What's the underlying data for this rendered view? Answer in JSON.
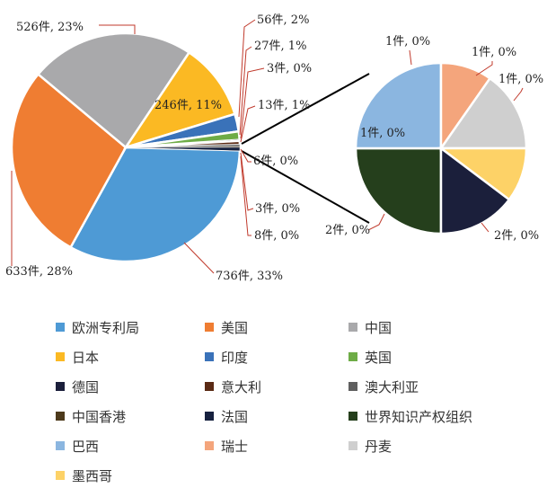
{
  "chart_data": {
    "type": "pie",
    "variant": "pie-of-pie",
    "title": "",
    "unit": "件",
    "slices": [
      {
        "name": "欧洲专利局",
        "count": 736,
        "percent": 33,
        "label": "736件, 33%",
        "color": "#4e9ad5"
      },
      {
        "name": "美国",
        "count": 633,
        "percent": 28,
        "label": "633件, 28%",
        "color": "#ef7d32"
      },
      {
        "name": "中国",
        "count": 526,
        "percent": 23,
        "label": "526件, 23%",
        "color": "#a9a9ab"
      },
      {
        "name": "日本",
        "count": 246,
        "percent": 11,
        "label": "246件, 11%",
        "color": "#fbb923"
      },
      {
        "name": "印度",
        "count": 56,
        "percent": 2,
        "label": "56件, 2%",
        "color": "#3a72b9"
      },
      {
        "name": "英国",
        "count": 27,
        "percent": 1,
        "label": "27件, 1%",
        "color": "#6eac46"
      },
      {
        "name": "德国",
        "count": 3,
        "percent": 0,
        "label": "3件, 0%",
        "color": "#1b1f3b"
      },
      {
        "name": "意大利",
        "count": 13,
        "percent": 1,
        "label": "13件, 1%",
        "color": "#5a2a14"
      },
      {
        "name": "澳大利亚",
        "count": 6,
        "percent": 0,
        "label": "6件, 0%",
        "color": "#5f5f5f"
      },
      {
        "name": "中国香港",
        "count": 3,
        "percent": 0,
        "label": "3件, 0%",
        "color": "#4d3a1b"
      },
      {
        "name": "法国",
        "count": 8,
        "percent": 0,
        "label": "8件, 0%",
        "color": "#16213f"
      }
    ],
    "secondary": [
      {
        "name": "世界知识产权组织",
        "count": 2,
        "percent": 0,
        "label": "2件, 0%",
        "color": "#253f1c"
      },
      {
        "name": "巴西",
        "count": 1,
        "percent": 0,
        "label": "1件, 0%",
        "color": "#8bb6e0"
      },
      {
        "name": "瑞士",
        "count": 1,
        "percent": 0,
        "label": "1件, 0%",
        "color": "#f4a57c"
      },
      {
        "name": "丹麦",
        "count": 1,
        "percent": 0,
        "label": "1件, 0%",
        "color": "#cfcfcf"
      },
      {
        "name": "墨西哥",
        "count": 1,
        "percent": 0,
        "label": "1件, 0%",
        "color": "#fdd267"
      },
      {
        "name": "德国",
        "count": 2,
        "percent": 0,
        "label": "2件, 0%",
        "color": "#1b1f3b"
      }
    ],
    "legend_position": "bottom",
    "legend": [
      {
        "name": "欧洲专利局",
        "color": "#4e9ad5"
      },
      {
        "name": "美国",
        "color": "#ef7d32"
      },
      {
        "name": "中国",
        "color": "#a9a9ab"
      },
      {
        "name": "日本",
        "color": "#fbb923"
      },
      {
        "name": "印度",
        "color": "#3a72b9"
      },
      {
        "name": "英国",
        "color": "#6eac46"
      },
      {
        "name": "德国",
        "color": "#1b1f3b"
      },
      {
        "name": "意大利",
        "color": "#5a2a14"
      },
      {
        "name": "澳大利亚",
        "color": "#5f5f5f"
      },
      {
        "name": "中国香港",
        "color": "#4d3a1b"
      },
      {
        "name": "法国",
        "color": "#16213f"
      },
      {
        "name": "世界知识产权组织",
        "color": "#253f1c"
      },
      {
        "name": "巴西",
        "color": "#8bb6e0"
      },
      {
        "name": "瑞士",
        "color": "#f4a57c"
      },
      {
        "name": "丹麦",
        "color": "#cfcfcf"
      },
      {
        "name": "墨西哥",
        "color": "#fdd267"
      }
    ],
    "leader_line_color": "#c0392b"
  }
}
